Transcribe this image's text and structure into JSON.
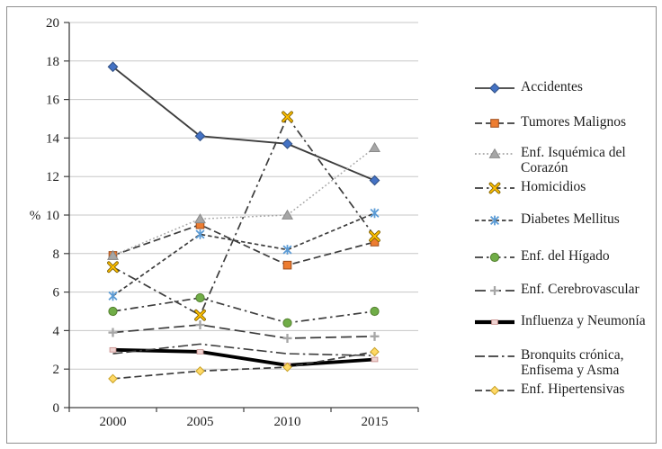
{
  "chart_data": {
    "type": "line",
    "title": "",
    "xlabel": "",
    "ylabel": "%",
    "categories": [
      "2000",
      "2005",
      "2010",
      "2015"
    ],
    "ylim": [
      0,
      20
    ],
    "ytick_step": 2,
    "y_tick_labels": [
      "0",
      "2",
      "4",
      "6",
      "8",
      "10",
      "12",
      "14",
      "16",
      "18",
      "20"
    ],
    "grid": true,
    "legend_position": "right",
    "series": [
      {
        "id": "accidentes",
        "name": "Accidentes",
        "values": [
          17.7,
          14.1,
          13.7,
          11.8
        ],
        "line_style": "solid",
        "line_color": "#3d3d3d",
        "line_width": 1.9,
        "marker": "diamond",
        "marker_color": "#4472C4"
      },
      {
        "id": "tumores-malignos",
        "name": "Tumores Malignos",
        "values": [
          7.9,
          9.5,
          7.4,
          8.6
        ],
        "line_style": "dash",
        "line_color": "#3d3d3d",
        "line_width": 1.7,
        "marker": "square",
        "marker_color": "#ED7D31"
      },
      {
        "id": "enf-isquemica-del-corazon",
        "name": "Enf. Isquémica del Corazón",
        "values": [
          7.9,
          9.8,
          10.0,
          13.5
        ],
        "line_style": "dot",
        "line_color": "#A6A6A6",
        "line_width": 1.5,
        "marker": "triangle",
        "marker_color": "#A6A6A6"
      },
      {
        "id": "homicidios",
        "name": "Homicidios",
        "values": [
          7.3,
          4.8,
          15.1,
          8.9
        ],
        "line_style": "dashdot",
        "line_color": "#3d3d3d",
        "line_width": 1.7,
        "marker": "x",
        "marker_color": "#FFC000"
      },
      {
        "id": "diabetes-mellitus",
        "name": "Diabetes Mellitus",
        "values": [
          5.8,
          9.0,
          8.2,
          10.1
        ],
        "line_style": "shortdash",
        "line_color": "#3d3d3d",
        "line_width": 1.7,
        "marker": "star",
        "marker_color": "#5B9BD5"
      },
      {
        "id": "enf-del-higado",
        "name": "Enf. del Hígado",
        "values": [
          5.0,
          5.7,
          4.4,
          5.0
        ],
        "line_style": "dashdot",
        "line_color": "#3d3d3d",
        "line_width": 1.7,
        "marker": "circle",
        "marker_color": "#70AD47"
      },
      {
        "id": "enf-cerebrovascular",
        "name": "Enf. Cerebrovascular",
        "values": [
          3.9,
          4.3,
          3.6,
          3.7
        ],
        "line_style": "longdash",
        "line_color": "#3d3d3d",
        "line_width": 1.7,
        "marker": "plus",
        "marker_color": "#A6A6A6"
      },
      {
        "id": "influenza-y-neumonia",
        "name": "Influenza y Neumonía",
        "values": [
          3.0,
          2.9,
          2.2,
          2.5
        ],
        "line_style": "solid",
        "line_color": "#000000",
        "line_width": 3.8,
        "marker": "smallsquare",
        "marker_color": "#EFD3D1"
      },
      {
        "id": "bronquits-cronica-enfisema-y-asma",
        "name": "Bronquits crónica, Enfisema y Asma",
        "values": [
          2.8,
          3.3,
          2.8,
          2.7
        ],
        "line_style": "longdashdotdot",
        "line_color": "#3d3d3d",
        "line_width": 1.6,
        "marker": "none",
        "marker_color": "#BFBFBF"
      },
      {
        "id": "enf-hipertensivas",
        "name": "Enf. Hipertensivas",
        "values": [
          1.5,
          1.9,
          2.1,
          2.9
        ],
        "line_style": "dash",
        "line_color": "#3d3d3d",
        "line_width": 1.7,
        "marker": "diamond-small",
        "marker_color": "#FFD966"
      }
    ]
  }
}
